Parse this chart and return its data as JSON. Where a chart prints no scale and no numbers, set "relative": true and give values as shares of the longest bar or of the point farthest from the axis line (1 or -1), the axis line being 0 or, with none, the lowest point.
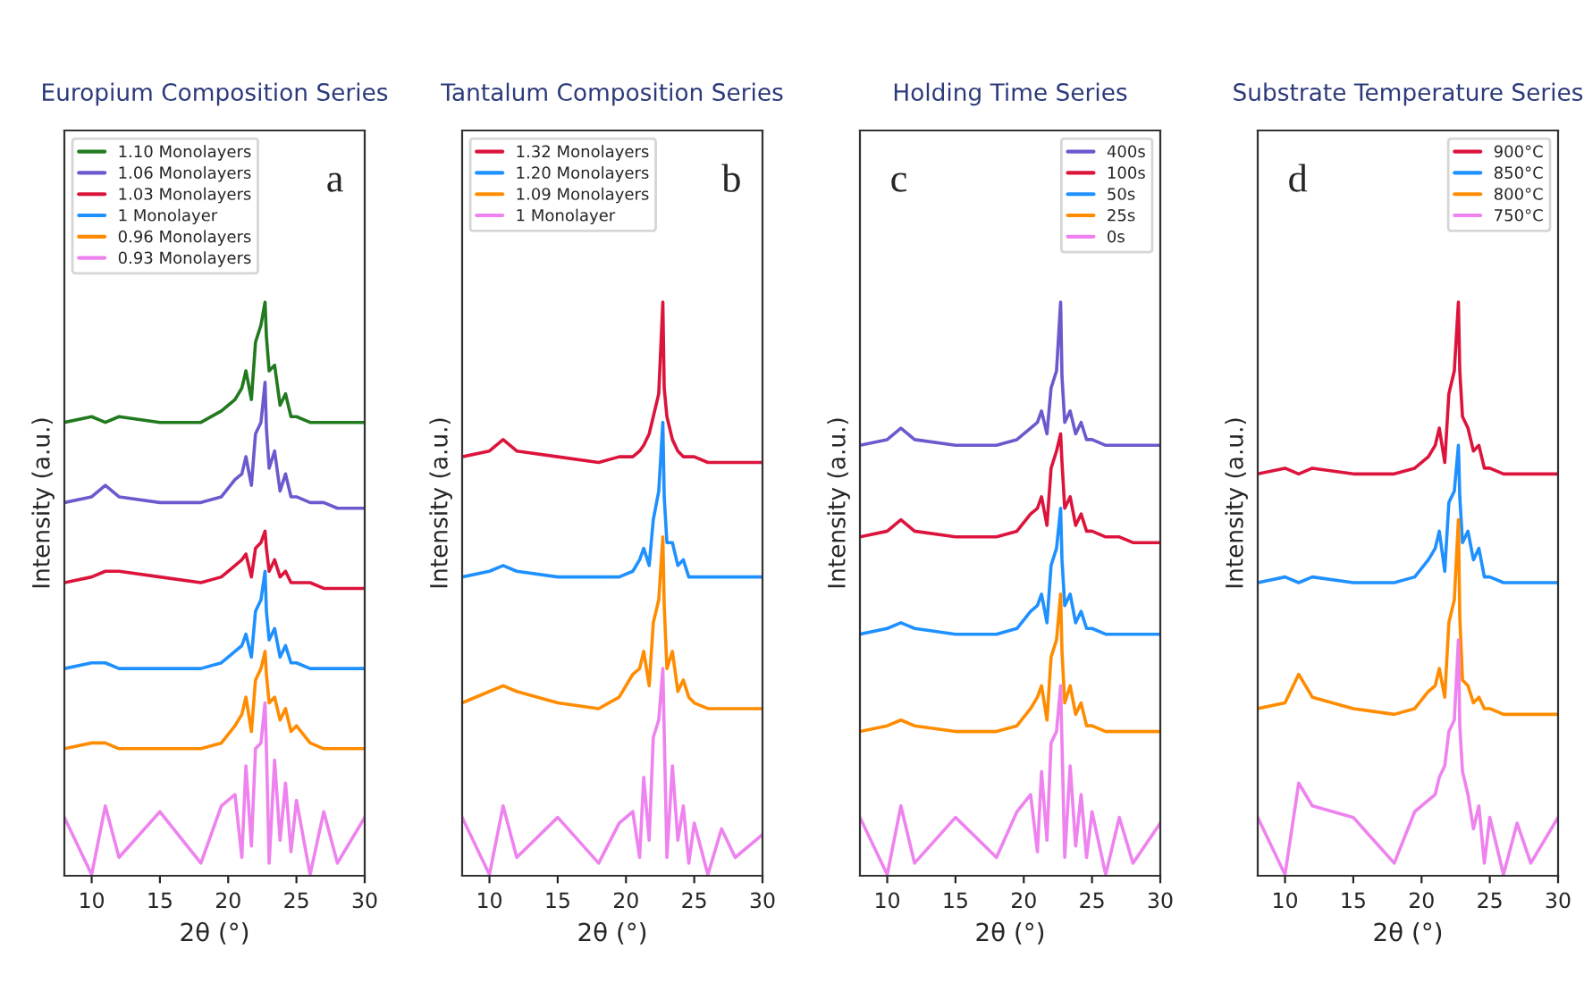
{
  "chart_data": [
    {
      "type": "line",
      "title": "Europium Composition Series",
      "xlabel": "2θ (°)",
      "ylabel": "Intensity (a.u.)",
      "relative": true,
      "annotations": [
        "a"
      ],
      "xlim": [
        8,
        30
      ],
      "xticks": [
        10,
        15,
        20,
        25,
        30
      ],
      "tick_labels": "x",
      "legend": "top left",
      "x": [
        8,
        10,
        11,
        12,
        15,
        18,
        19.5,
        20.5,
        21,
        21.3,
        21.7,
        22.0,
        22.4,
        22.7,
        22.8,
        23.0,
        23.4,
        23.8,
        24.2,
        24.6,
        25,
        26,
        27,
        28,
        30
      ],
      "series": [
        {
          "name": "1.10 Monolayers",
          "color": "#217a1e",
          "values": [
            0.79,
            0.8,
            0.79,
            0.8,
            0.79,
            0.79,
            0.81,
            0.83,
            0.85,
            0.88,
            0.83,
            0.93,
            0.96,
            1.0,
            0.94,
            0.88,
            0.89,
            0.82,
            0.84,
            0.8,
            0.8,
            0.79,
            0.79,
            0.79,
            0.79
          ]
        },
        {
          "name": "1.06 Monolayers",
          "color": "#6a5acd",
          "values": [
            0.65,
            0.66,
            0.68,
            0.66,
            0.65,
            0.65,
            0.66,
            0.69,
            0.7,
            0.73,
            0.68,
            0.77,
            0.79,
            0.86,
            0.78,
            0.71,
            0.74,
            0.67,
            0.7,
            0.66,
            0.66,
            0.65,
            0.65,
            0.64,
            0.64
          ]
        },
        {
          "name": "1.03 Monolayers",
          "color": "#dc143c",
          "values": [
            0.51,
            0.52,
            0.53,
            0.53,
            0.52,
            0.51,
            0.52,
            0.54,
            0.55,
            0.56,
            0.52,
            0.57,
            0.58,
            0.6,
            0.57,
            0.53,
            0.55,
            0.52,
            0.53,
            0.51,
            0.51,
            0.51,
            0.5,
            0.5,
            0.5
          ]
        },
        {
          "name": "1 Monolayer",
          "color": "#1e90ff",
          "values": [
            0.36,
            0.37,
            0.37,
            0.36,
            0.36,
            0.36,
            0.37,
            0.39,
            0.4,
            0.42,
            0.38,
            0.46,
            0.48,
            0.53,
            0.46,
            0.41,
            0.43,
            0.38,
            0.4,
            0.37,
            0.37,
            0.36,
            0.36,
            0.36,
            0.36
          ]
        },
        {
          "name": "0.96 Monolayers",
          "color": "#ff8c00",
          "values": [
            0.22,
            0.23,
            0.23,
            0.22,
            0.22,
            0.22,
            0.23,
            0.26,
            0.28,
            0.31,
            0.25,
            0.34,
            0.36,
            0.39,
            0.35,
            0.3,
            0.31,
            0.27,
            0.29,
            0.25,
            0.26,
            0.23,
            0.22,
            0.22,
            0.22
          ]
        },
        {
          "name": "0.93 Monolayers",
          "color": "#ee82ee",
          "values": [
            0.1,
            0.0,
            0.12,
            0.03,
            0.11,
            0.02,
            0.12,
            0.14,
            0.03,
            0.19,
            0.05,
            0.22,
            0.23,
            0.3,
            0.22,
            0.02,
            0.2,
            0.06,
            0.16,
            0.04,
            0.13,
            0.0,
            0.11,
            0.02,
            0.1
          ]
        }
      ]
    },
    {
      "type": "line",
      "title": "Tantalum Composition Series",
      "xlabel": "2θ (°)",
      "ylabel": "Intensity (a.u.)",
      "relative": true,
      "annotations": [
        "b"
      ],
      "xlim": [
        8,
        30
      ],
      "xticks": [
        10,
        15,
        20,
        25,
        30
      ],
      "tick_labels": "x",
      "legend": "top left",
      "x": [
        8,
        10,
        11,
        12,
        15,
        18,
        19.5,
        20.5,
        21,
        21.3,
        21.7,
        22.0,
        22.4,
        22.7,
        22.8,
        23.0,
        23.4,
        23.8,
        24.2,
        24.6,
        25,
        26,
        27,
        28,
        30
      ],
      "series": [
        {
          "name": "1.32 Monolayers",
          "color": "#dc143c",
          "values": [
            0.73,
            0.74,
            0.76,
            0.74,
            0.73,
            0.72,
            0.73,
            0.73,
            0.74,
            0.75,
            0.77,
            0.8,
            0.84,
            1.0,
            0.85,
            0.8,
            0.76,
            0.74,
            0.73,
            0.73,
            0.73,
            0.72,
            0.72,
            0.72,
            0.72
          ]
        },
        {
          "name": "1.20 Monolayers",
          "color": "#1e90ff",
          "values": [
            0.52,
            0.53,
            0.54,
            0.53,
            0.52,
            0.52,
            0.52,
            0.53,
            0.55,
            0.57,
            0.54,
            0.62,
            0.67,
            0.79,
            0.66,
            0.58,
            0.58,
            0.54,
            0.55,
            0.52,
            0.52,
            0.52,
            0.52,
            0.52,
            0.52
          ]
        },
        {
          "name": "1.09 Monolayers",
          "color": "#ff8c00",
          "values": [
            0.3,
            0.32,
            0.33,
            0.32,
            0.3,
            0.29,
            0.31,
            0.35,
            0.36,
            0.39,
            0.33,
            0.44,
            0.48,
            0.59,
            0.47,
            0.36,
            0.39,
            0.32,
            0.34,
            0.31,
            0.3,
            0.29,
            0.29,
            0.29,
            0.29
          ]
        },
        {
          "name": "1 Monolayer",
          "color": "#ee82ee",
          "values": [
            0.1,
            0.0,
            0.12,
            0.03,
            0.1,
            0.02,
            0.09,
            0.11,
            0.03,
            0.17,
            0.06,
            0.24,
            0.27,
            0.36,
            0.25,
            0.03,
            0.19,
            0.06,
            0.12,
            0.02,
            0.09,
            0.0,
            0.08,
            0.03,
            0.07
          ]
        }
      ]
    },
    {
      "type": "line",
      "title": "Holding Time Series",
      "xlabel": "2θ (°)",
      "ylabel": "Intensity (a.u.)",
      "relative": true,
      "annotations": [
        "c"
      ],
      "xlim": [
        8,
        30
      ],
      "xticks": [
        10,
        15,
        20,
        25,
        30
      ],
      "tick_labels": "x",
      "legend": "top right",
      "x": [
        8,
        10,
        11,
        12,
        15,
        18,
        19.5,
        20.5,
        21,
        21.3,
        21.7,
        22.0,
        22.4,
        22.7,
        22.8,
        23.0,
        23.4,
        23.8,
        24.2,
        24.6,
        25,
        26,
        27,
        28,
        30
      ],
      "series": [
        {
          "name": "400s",
          "color": "#6a5acd",
          "values": [
            0.75,
            0.76,
            0.78,
            0.76,
            0.75,
            0.75,
            0.76,
            0.78,
            0.79,
            0.81,
            0.77,
            0.85,
            0.88,
            1.0,
            0.87,
            0.79,
            0.81,
            0.77,
            0.79,
            0.76,
            0.76,
            0.75,
            0.75,
            0.75,
            0.75
          ]
        },
        {
          "name": "100s",
          "color": "#dc143c",
          "values": [
            0.59,
            0.6,
            0.62,
            0.6,
            0.59,
            0.59,
            0.6,
            0.63,
            0.64,
            0.66,
            0.61,
            0.71,
            0.74,
            0.77,
            0.72,
            0.64,
            0.66,
            0.61,
            0.63,
            0.6,
            0.6,
            0.59,
            0.59,
            0.58,
            0.58
          ]
        },
        {
          "name": "50s",
          "color": "#1e90ff",
          "values": [
            0.42,
            0.43,
            0.44,
            0.43,
            0.42,
            0.42,
            0.43,
            0.46,
            0.47,
            0.49,
            0.44,
            0.54,
            0.57,
            0.64,
            0.55,
            0.47,
            0.49,
            0.44,
            0.46,
            0.43,
            0.43,
            0.42,
            0.42,
            0.42,
            0.42
          ]
        },
        {
          "name": "25s",
          "color": "#ff8c00",
          "values": [
            0.25,
            0.26,
            0.27,
            0.26,
            0.25,
            0.25,
            0.26,
            0.29,
            0.31,
            0.33,
            0.27,
            0.38,
            0.41,
            0.49,
            0.39,
            0.3,
            0.33,
            0.28,
            0.3,
            0.26,
            0.26,
            0.25,
            0.25,
            0.25,
            0.25
          ]
        },
        {
          "name": "0s",
          "color": "#ee82ee",
          "values": [
            0.1,
            0.0,
            0.12,
            0.02,
            0.1,
            0.03,
            0.11,
            0.14,
            0.04,
            0.18,
            0.06,
            0.23,
            0.25,
            0.33,
            0.23,
            0.03,
            0.19,
            0.05,
            0.14,
            0.03,
            0.11,
            0.0,
            0.1,
            0.02,
            0.09
          ]
        }
      ]
    },
    {
      "type": "line",
      "title": "Substrate Temperature Series",
      "xlabel": "2θ (°)",
      "ylabel": "Intensity (a.u.)",
      "relative": true,
      "annotations": [
        "d"
      ],
      "xlim": [
        8,
        30
      ],
      "xticks": [
        10,
        15,
        20,
        25,
        30
      ],
      "tick_labels": "x",
      "legend": "top right",
      "x": [
        8,
        10,
        11,
        12,
        15,
        18,
        19.5,
        20.5,
        21,
        21.3,
        21.7,
        22.0,
        22.4,
        22.7,
        22.8,
        23.0,
        23.4,
        23.8,
        24.2,
        24.6,
        25,
        26,
        27,
        28,
        30
      ],
      "series": [
        {
          "name": "900°C",
          "color": "#dc143c",
          "values": [
            0.7,
            0.71,
            0.7,
            0.71,
            0.7,
            0.7,
            0.71,
            0.73,
            0.75,
            0.78,
            0.72,
            0.84,
            0.88,
            1.0,
            0.88,
            0.8,
            0.78,
            0.74,
            0.75,
            0.71,
            0.71,
            0.7,
            0.7,
            0.7,
            0.7
          ]
        },
        {
          "name": "850°C",
          "color": "#1e90ff",
          "values": [
            0.51,
            0.52,
            0.51,
            0.52,
            0.51,
            0.51,
            0.52,
            0.55,
            0.57,
            0.6,
            0.53,
            0.65,
            0.67,
            0.75,
            0.66,
            0.58,
            0.6,
            0.55,
            0.57,
            0.52,
            0.52,
            0.51,
            0.51,
            0.51,
            0.51
          ]
        },
        {
          "name": "800°C",
          "color": "#ff8c00",
          "values": [
            0.29,
            0.3,
            0.35,
            0.31,
            0.29,
            0.28,
            0.29,
            0.32,
            0.33,
            0.36,
            0.31,
            0.44,
            0.48,
            0.62,
            0.45,
            0.34,
            0.33,
            0.3,
            0.31,
            0.29,
            0.29,
            0.28,
            0.28,
            0.28,
            0.28
          ]
        },
        {
          "name": "750°C",
          "color": "#ee82ee",
          "values": [
            0.1,
            0.0,
            0.16,
            0.12,
            0.1,
            0.02,
            0.11,
            0.13,
            0.14,
            0.17,
            0.19,
            0.25,
            0.27,
            0.41,
            0.26,
            0.18,
            0.14,
            0.08,
            0.12,
            0.02,
            0.1,
            0.0,
            0.09,
            0.02,
            0.1
          ]
        }
      ]
    }
  ]
}
